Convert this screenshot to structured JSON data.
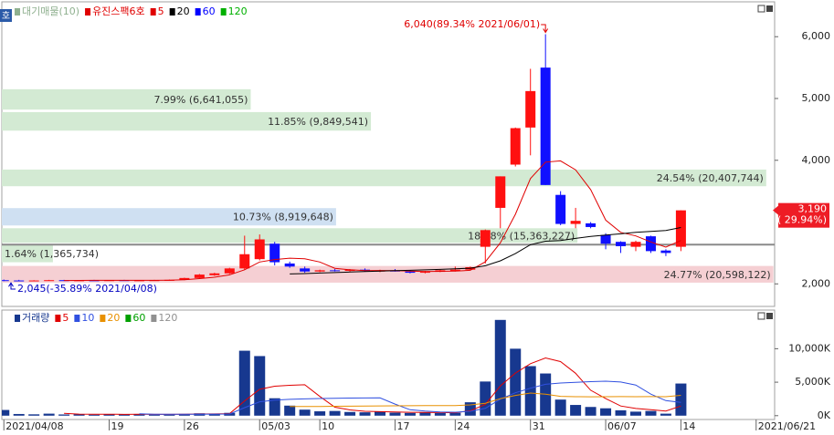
{
  "corner_tag": "호",
  "chart_data": [
    {
      "type": "candlestick",
      "profile": {
        "name": "대기매물(10)",
        "color": "#8fb08f",
        "bands": [
          {
            "label": "7.99% (6,641,055)",
            "pct": 7.99,
            "low": 4820,
            "high": 5150,
            "color": "#d3ead3"
          },
          {
            "label": "11.85% (9,849,541)",
            "pct": 11.85,
            "low": 4480,
            "high": 4780,
            "color": "#d3ead3"
          },
          {
            "label": "24.54% (20,407,744)",
            "pct": 24.54,
            "low": 3580,
            "high": 3850,
            "color": "#d3ead3"
          },
          {
            "label": "10.73% (8,919,648)",
            "pct": 10.73,
            "low": 2945,
            "high": 3226,
            "color": "#cfe0f2"
          },
          {
            "label": "18.48% (15,363,227)",
            "pct": 18.48,
            "low": 2665,
            "high": 2900,
            "color": "#d3ead3"
          },
          {
            "label": "1.64% (1,365,734)",
            "pct": 1.64,
            "low": 2350,
            "high": 2630,
            "color": "#d3ead3"
          },
          {
            "label": "24.77% (20,598,122)",
            "pct": 24.77,
            "low": 2020,
            "high": 2290,
            "color": "#f5cfd3"
          }
        ]
      },
      "stock": {
        "name": "유진스팩6호",
        "color": "#e00000"
      },
      "up_color": "#ff1010",
      "down_color": "#1010ff",
      "open": [
        2060,
        2055,
        2050,
        2055,
        2060,
        2055,
        2058,
        2055,
        2060,
        2056,
        2058,
        2060,
        2065,
        2095,
        2140,
        2170,
        2250,
        2400,
        2650,
        2330,
        2250,
        2200,
        2220,
        2210,
        2230,
        2200,
        2215,
        2200,
        2180,
        2195,
        2210,
        2230,
        2600,
        3230,
        3930,
        4530,
        5500,
        3440,
        2970,
        2980,
        2790,
        2680,
        2600,
        2770,
        2540,
        2600,
        null,
        null,
        null,
        null,
        null
      ],
      "high": [
        2070,
        2065,
        2060,
        2065,
        2065,
        2060,
        2065,
        2062,
        2065,
        2062,
        2065,
        2070,
        2100,
        2160,
        2180,
        2260,
        2780,
        2800,
        2680,
        2360,
        2280,
        2230,
        2240,
        2240,
        2250,
        2230,
        2240,
        2220,
        2210,
        2230,
        2280,
        2280,
        2880,
        3740,
        4530,
        5480,
        6040,
        3500,
        3230,
        3000,
        2820,
        2690,
        2700,
        2780,
        2560,
        3190,
        null,
        null,
        null,
        null,
        null
      ],
      "low": [
        2045,
        2045,
        2045,
        2050,
        2050,
        2050,
        2050,
        2050,
        2052,
        2050,
        2052,
        2055,
        2060,
        2090,
        2130,
        2160,
        2230,
        2380,
        2300,
        2260,
        2180,
        2190,
        2200,
        2200,
        2200,
        2190,
        2200,
        2170,
        2170,
        2190,
        2200,
        2220,
        2330,
        2900,
        3900,
        4080,
        3600,
        2950,
        2900,
        2900,
        2560,
        2500,
        2530,
        2500,
        2450,
        2530,
        null,
        null,
        null,
        null,
        null
      ],
      "close": [
        2055,
        2050,
        2055,
        2060,
        2055,
        2058,
        2055,
        2060,
        2056,
        2058,
        2060,
        2065,
        2095,
        2150,
        2170,
        2250,
        2480,
        2720,
        2350,
        2280,
        2200,
        2220,
        2210,
        2230,
        2210,
        2215,
        2205,
        2180,
        2195,
        2220,
        2230,
        2270,
        2870,
        3740,
        4520,
        5120,
        3600,
        2970,
        3020,
        2920,
        2650,
        2610,
        2680,
        2530,
        2500,
        3190,
        null,
        null,
        null,
        null,
        null
      ],
      "series": [
        {
          "name": "5",
          "color": "#e00000",
          "values": [
            null,
            null,
            null,
            null,
            2055,
            2056,
            2057,
            2058,
            2058,
            2057,
            2058,
            2060,
            2067,
            2086,
            2108,
            2146,
            2229,
            2354,
            2394,
            2416,
            2406,
            2354,
            2252,
            2228,
            2214,
            2217,
            2214,
            2208,
            2201,
            2203,
            2206,
            2219,
            2357,
            2666,
            3126,
            3704,
            3970,
            3990,
            3846,
            3526,
            3032,
            2834,
            2776,
            2678,
            2594,
            2702,
            null,
            null,
            null,
            null,
            null
          ]
        },
        {
          "name": "20",
          "color": "#000000",
          "values": [
            null,
            null,
            null,
            null,
            null,
            null,
            null,
            null,
            null,
            null,
            null,
            null,
            null,
            null,
            null,
            null,
            null,
            null,
            null,
            2160,
            2167,
            2175,
            2183,
            2191,
            2199,
            2207,
            2214,
            2220,
            2227,
            2235,
            2244,
            2254,
            2293,
            2373,
            2490,
            2634,
            2690,
            2702,
            2736,
            2768,
            2791,
            2810,
            2834,
            2849,
            2863,
            2912,
            null,
            null,
            null,
            null,
            null
          ]
        },
        {
          "name": "60",
          "color": "#0000ff"
        },
        {
          "name": "120",
          "color": "#00b000"
        }
      ],
      "ref_price": 2635,
      "high_label": {
        "text": "6,040(89.34% 2021/06/01)",
        "value": 6040,
        "color": "#e00000"
      },
      "low_label": {
        "text": "2,045(-35.89% 2021/04/08)",
        "value": 2045,
        "color": "#0000c0"
      },
      "last": {
        "value": 3190,
        "label": "3,190",
        "change": "( 29.94%)",
        "color": "#ee1c25"
      },
      "ylim": [
        1650,
        6520
      ],
      "yticks": [
        {
          "value": 2000,
          "label": "2,000"
        },
        {
          "value": 4000,
          "label": "4,000"
        },
        {
          "value": 5000,
          "label": "5,000"
        },
        {
          "value": 6000,
          "label": "6,000"
        }
      ]
    },
    {
      "type": "bar",
      "name": "거래량",
      "color": "#17388f",
      "categories": [
        "2021/04/08",
        null,
        null,
        null,
        null,
        null,
        null,
        "19",
        null,
        null,
        null,
        null,
        "26",
        null,
        null,
        null,
        null,
        "05/03",
        null,
        null,
        null,
        "10",
        null,
        null,
        null,
        null,
        "17",
        null,
        null,
        null,
        "24",
        null,
        null,
        null,
        null,
        "31",
        null,
        null,
        null,
        null,
        "06/07",
        null,
        null,
        null,
        null,
        "14",
        null,
        null,
        null,
        null,
        "2021/06/21"
      ],
      "values": [
        850,
        250,
        200,
        300,
        180,
        220,
        150,
        200,
        170,
        250,
        160,
        200,
        250,
        350,
        300,
        420,
        9700,
        8900,
        2600,
        1500,
        900,
        650,
        700,
        550,
        500,
        600,
        450,
        400,
        500,
        380,
        420,
        2000,
        5100,
        14300,
        10000,
        7400,
        6300,
        2400,
        1600,
        1300,
        1100,
        800,
        600,
        700,
        300,
        4800,
        null,
        null,
        null,
        null,
        null
      ],
      "series": [
        {
          "name": "5",
          "color": "#e00000",
          "values": [
            null,
            null,
            null,
            null,
            356,
            236,
            210,
            214,
            188,
            198,
            186,
            196,
            206,
            242,
            260,
            304,
            2204,
            3934,
            4394,
            4540,
            4620,
            2870,
            1270,
            860,
            660,
            600,
            560,
            500,
            490,
            466,
            430,
            740,
            1680,
            4460,
            6360,
            7760,
            8620,
            8080,
            6340,
            3800,
            2540,
            1440,
            1080,
            900,
            700,
            1440,
            null,
            null,
            null,
            null,
            null
          ]
        },
        {
          "name": "10",
          "color": "#3050e0",
          "values": [
            null,
            null,
            null,
            null,
            null,
            null,
            null,
            null,
            null,
            277,
            208,
            203,
            208,
            213,
            225,
            245,
            1200,
            2070,
            2313,
            2438,
            2512,
            2557,
            2602,
            2622,
            2642,
            2660,
            1735,
            885,
            675,
            563,
            515,
            650,
            1090,
            2465,
            3415,
            4095,
            4680,
            4880,
            4990,
            5082,
            5150,
            5030,
            4580,
            3220,
            2250,
            1990,
            null,
            null,
            null,
            null,
            null
          ]
        },
        {
          "name": "20",
          "color": "#e89000",
          "values": [
            null,
            null,
            null,
            null,
            null,
            null,
            null,
            null,
            null,
            null,
            null,
            null,
            null,
            null,
            null,
            null,
            null,
            null,
            null,
            1358,
            1360,
            1380,
            1405,
            1418,
            1434,
            1453,
            1468,
            1478,
            1494,
            1501,
            1514,
            1604,
            1846,
            2544,
            3029,
            3378,
            3208,
            2883,
            2833,
            2823,
            2833,
            2840,
            2835,
            2843,
            2833,
            3043,
            null,
            null,
            null,
            null,
            null
          ]
        },
        {
          "name": "60",
          "color": "#00a000"
        },
        {
          "name": "120",
          "color": "#909090"
        }
      ],
      "ylim": [
        -300,
        15500
      ],
      "yticks": [
        {
          "value": 0,
          "label": "0K"
        },
        {
          "value": 5000,
          "label": "5,000K"
        },
        {
          "value": 10000,
          "label": "10,000K"
        }
      ]
    }
  ]
}
